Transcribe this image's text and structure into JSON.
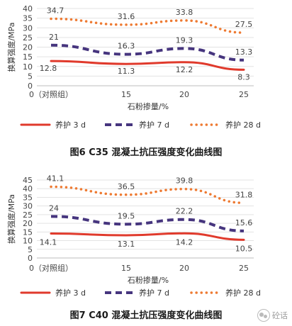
{
  "chart_data": [
    {
      "type": "line",
      "title": "图6    C35 混凝土抗压强度变化曲线图",
      "xlabel": "石粉掺量/%",
      "ylabel": "换算强度/MPa",
      "categories": [
        "0（对照组）",
        "15",
        "20",
        "25"
      ],
      "ylim": [
        0,
        40
      ],
      "yticks": [
        0,
        5,
        10,
        15,
        20,
        25,
        30,
        35,
        40
      ],
      "grid": true,
      "legend_position": "bottom",
      "series": [
        {
          "name": "养护 3 d",
          "values": [
            12.8,
            11.3,
            12.2,
            8.3
          ],
          "labels": [
            "12.8",
            "11.3",
            "12.2",
            "8.3"
          ],
          "color": "#e03a2c",
          "style": "solid"
        },
        {
          "name": "养护 7 d",
          "values": [
            21,
            16.3,
            19.3,
            13.3
          ],
          "labels": [
            "21",
            "16.3",
            "19.3",
            "13.3"
          ],
          "color": "#46357e",
          "style": "dashed"
        },
        {
          "name": "养护 28 d",
          "values": [
            34.7,
            31.6,
            33.8,
            27.5
          ],
          "labels": [
            "34.7",
            "31.6",
            "33.8",
            "27.5"
          ],
          "color": "#ee7a32",
          "style": "dotted"
        }
      ]
    },
    {
      "type": "line",
      "title": "图7    C40 混凝土抗压强度变化曲线图",
      "xlabel": "石粉掺量/%",
      "ylabel": "换算强度/MPa",
      "categories": [
        "0（对照组）",
        "15",
        "20",
        "25"
      ],
      "ylim": [
        0,
        45
      ],
      "yticks": [
        0,
        5,
        10,
        15,
        20,
        25,
        30,
        35,
        40,
        45
      ],
      "grid": true,
      "legend_position": "bottom",
      "series": [
        {
          "name": "养护 3 d",
          "values": [
            14.1,
            13.1,
            14.2,
            10.5
          ],
          "labels": [
            "14.1",
            "13.1",
            "14.2",
            "10.5"
          ],
          "color": "#e03a2c",
          "style": "solid"
        },
        {
          "name": "养护 7 d",
          "values": [
            24,
            19.5,
            22.2,
            15.6
          ],
          "labels": [
            "24",
            "19.5",
            "22.2",
            "15.6"
          ],
          "color": "#46357e",
          "style": "dashed"
        },
        {
          "name": "养护 28 d",
          "values": [
            41.1,
            36.5,
            39.8,
            31.8
          ],
          "labels": [
            "41.1",
            "36.5",
            "39.8",
            "31.8"
          ],
          "color": "#ee7a32",
          "style": "dotted"
        }
      ]
    }
  ],
  "watermark": {
    "text": "砼话",
    "icon": "wechat-icon"
  }
}
